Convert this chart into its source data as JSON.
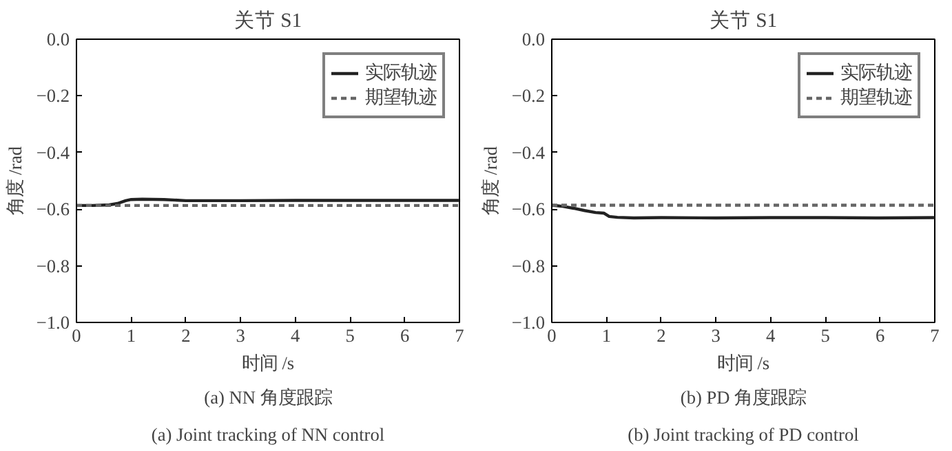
{
  "chart_data": [
    {
      "type": "line",
      "title": "关节 S1",
      "xlabel": "时间 /s",
      "ylabel": "角度 /rad",
      "xlim": [
        0,
        7
      ],
      "ylim": [
        -1.0,
        0.0
      ],
      "xticks": [
        0,
        1,
        2,
        3,
        4,
        5,
        6,
        7
      ],
      "yticks": [
        {
          "value": -1.0,
          "label": "−1.0"
        },
        {
          "value": -0.8,
          "label": "−0.8"
        },
        {
          "value": -0.6,
          "label": "−0.6"
        },
        {
          "value": -0.4,
          "label": "−0.4"
        },
        {
          "value": -0.2,
          "label": "−0.2"
        },
        {
          "value": 0.0,
          "label": "0.0"
        }
      ],
      "grid": false,
      "legend": "top right",
      "annotations": [
        "(a) NN 角度跟踪",
        "(a) Joint tracking of NN control"
      ],
      "series": [
        {
          "name": "实际轨迹",
          "color": "#222222",
          "line_style": "solid",
          "x": [
            0,
            0.3,
            0.6,
            0.75,
            0.9,
            1.0,
            1.2,
            1.6,
            2.0,
            3.0,
            4.0,
            5.0,
            6.0,
            7.0
          ],
          "values": [
            -0.587,
            -0.587,
            -0.585,
            -0.58,
            -0.57,
            -0.566,
            -0.565,
            -0.566,
            -0.57,
            -0.57,
            -0.569,
            -0.569,
            -0.569,
            -0.569
          ]
        },
        {
          "name": "期望轨迹",
          "color": "#666666",
          "line_style": "dashed",
          "x": [
            0,
            7
          ],
          "values": [
            -0.587,
            -0.587
          ]
        }
      ]
    },
    {
      "type": "line",
      "title": "关节 S1",
      "xlabel": "时间 /s",
      "ylabel": "角度 /rad",
      "xlim": [
        0,
        7
      ],
      "ylim": [
        -1.0,
        0.0
      ],
      "xticks": [
        0,
        1,
        2,
        3,
        4,
        5,
        6,
        7
      ],
      "yticks": [
        {
          "value": -1.0,
          "label": "−1.0"
        },
        {
          "value": -0.8,
          "label": "−0.8"
        },
        {
          "value": -0.6,
          "label": "−0.6"
        },
        {
          "value": -0.4,
          "label": "−0.4"
        },
        {
          "value": -0.2,
          "label": "−0.2"
        },
        {
          "value": 0.0,
          "label": "0.0"
        }
      ],
      "grid": false,
      "legend": "top right",
      "annotations": [
        "(b) PD 角度跟踪",
        "(b) Joint tracking of PD control"
      ],
      "series": [
        {
          "name": "实际轨迹",
          "color": "#222222",
          "line_style": "solid",
          "x": [
            0,
            0.2,
            0.4,
            0.6,
            0.8,
            0.95,
            1.05,
            1.2,
            1.5,
            2.0,
            3.0,
            4.0,
            5.0,
            6.0,
            7.0
          ],
          "values": [
            -0.586,
            -0.59,
            -0.597,
            -0.605,
            -0.612,
            -0.614,
            -0.626,
            -0.629,
            -0.631,
            -0.63,
            -0.631,
            -0.63,
            -0.63,
            -0.631,
            -0.63
          ]
        },
        {
          "name": "期望轨迹",
          "color": "#666666",
          "line_style": "dashed",
          "x": [
            0,
            7
          ],
          "values": [
            -0.586,
            -0.586
          ]
        }
      ]
    }
  ]
}
